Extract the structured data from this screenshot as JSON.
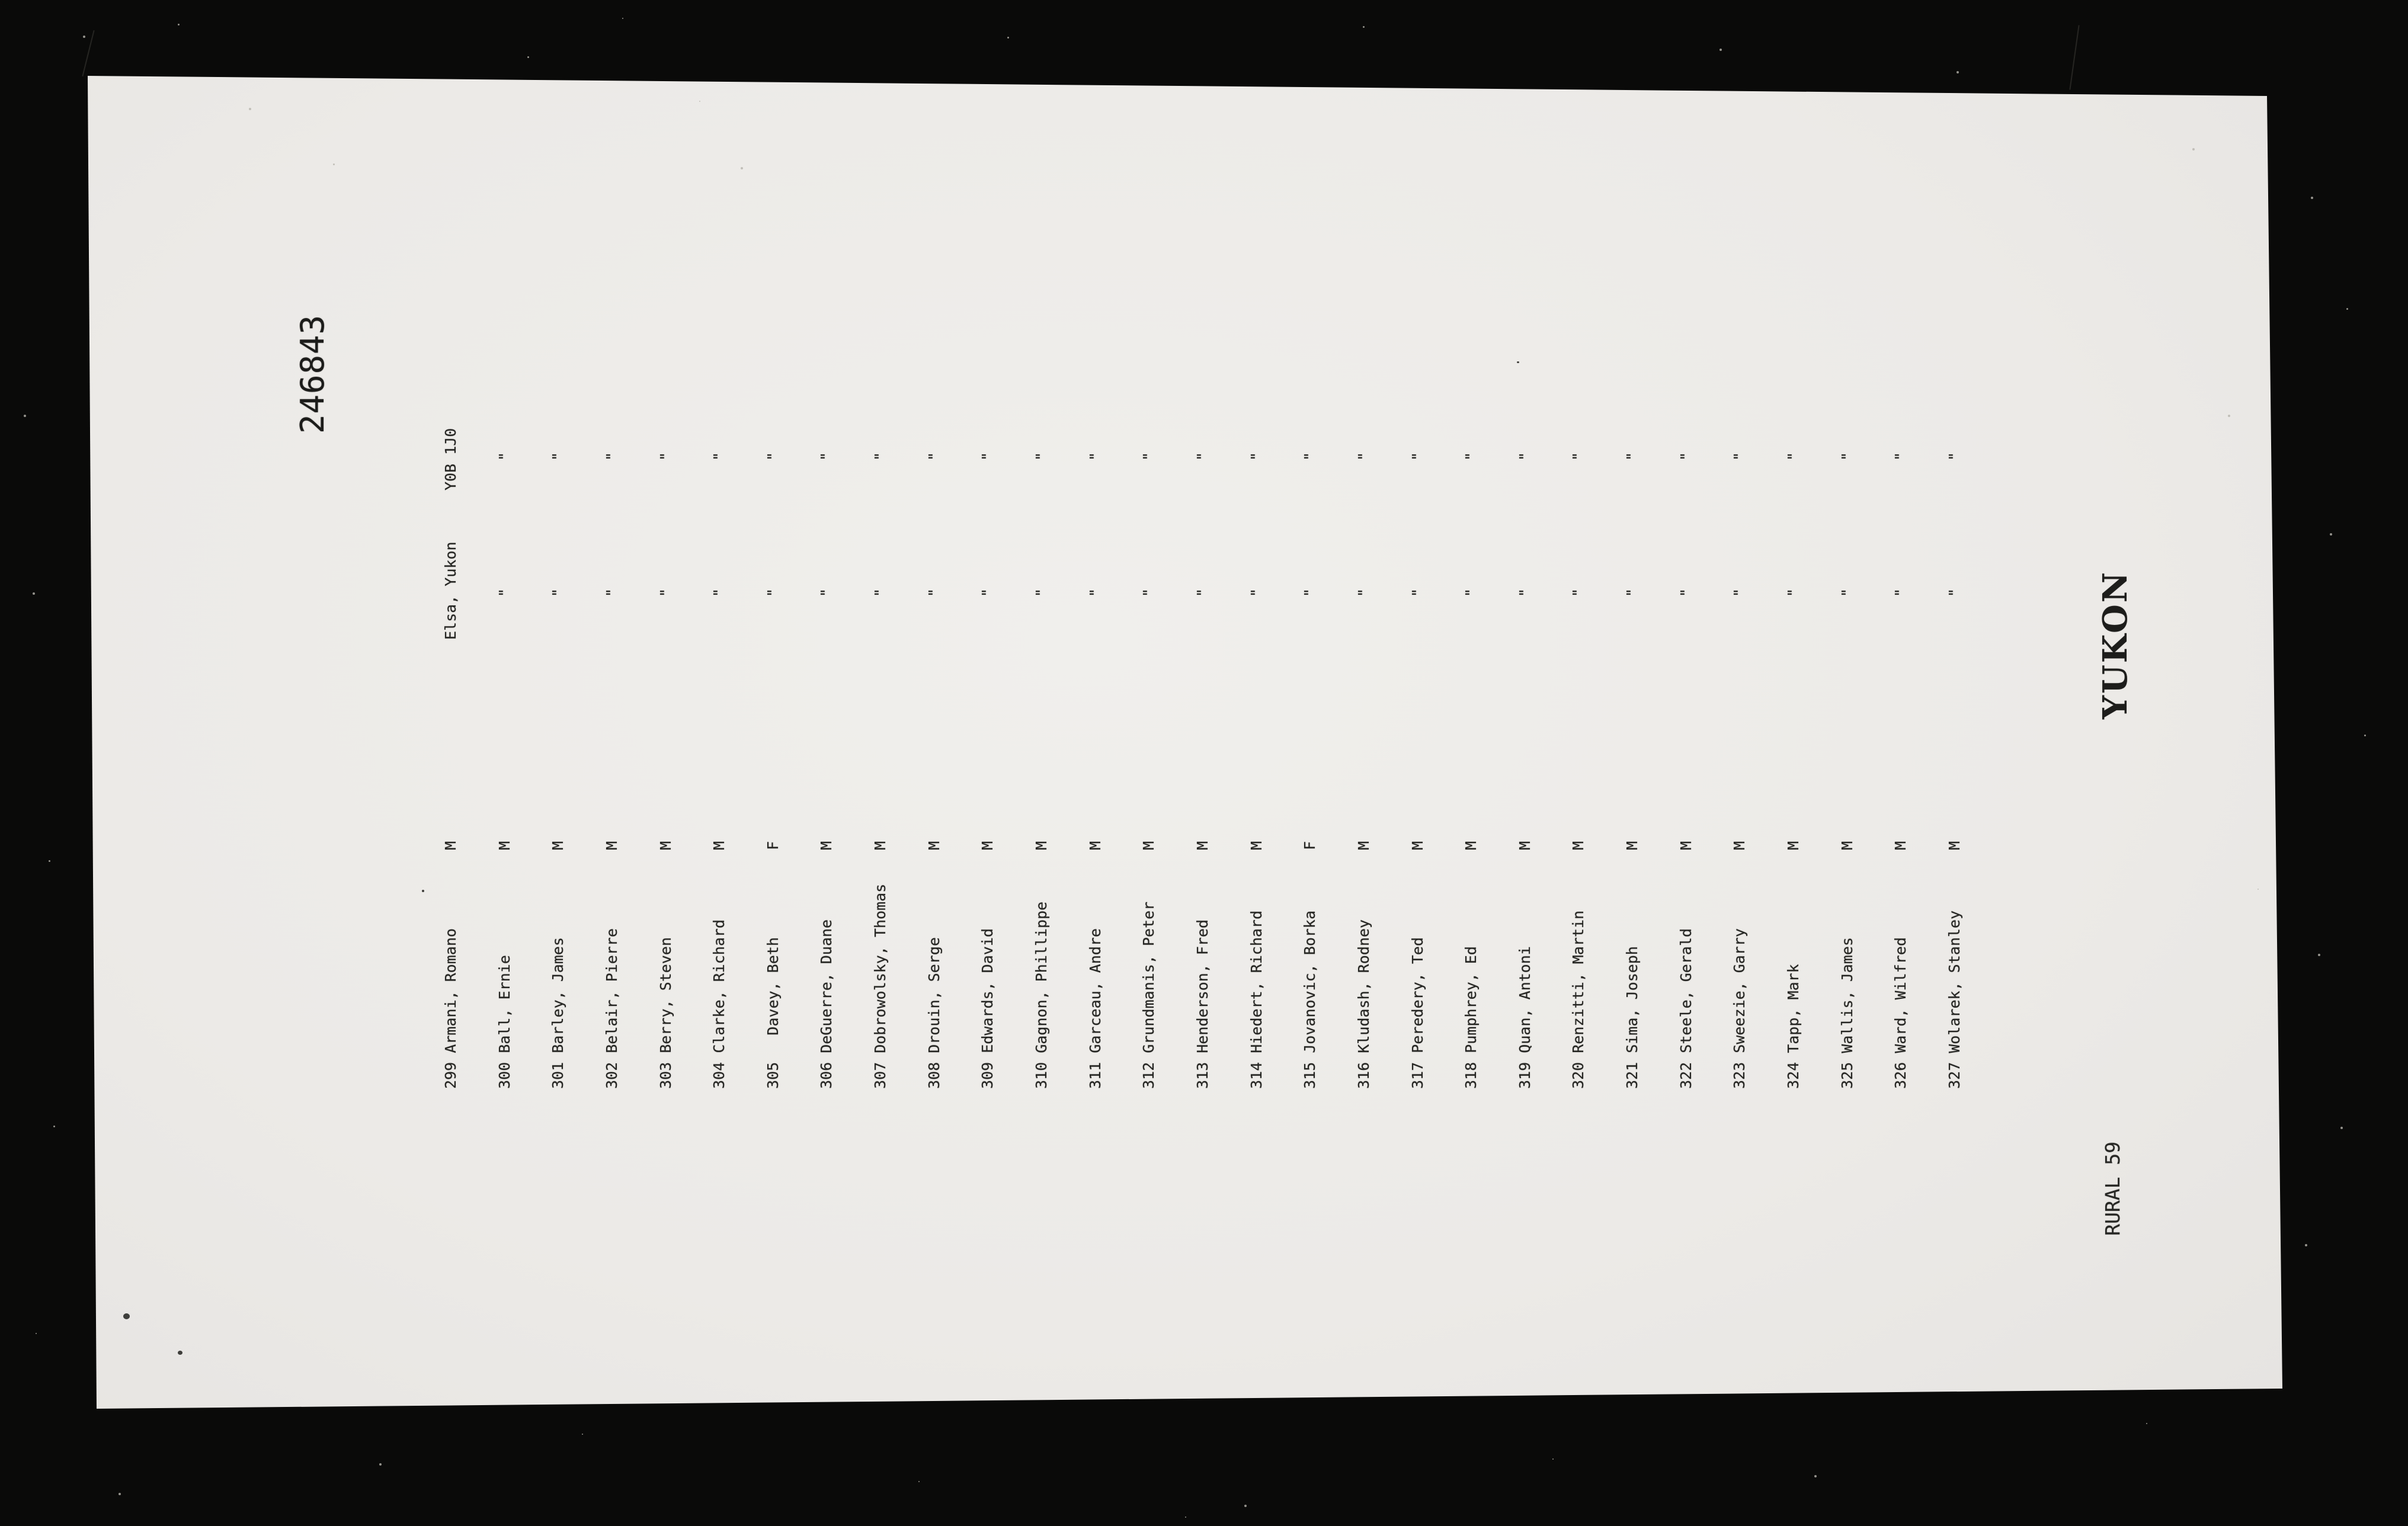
{
  "film": {
    "frame_number": "246843",
    "territory_label": "YUKON",
    "district_label": "RURAL 59",
    "film_black": "#0a0a09",
    "page_color": "#eceae7",
    "ink_color": "#242421"
  },
  "list": {
    "address": {
      "line1": "Elsa, Yukon",
      "postal": "Y0B 1J0"
    },
    "ditto_mark": "\"",
    "rows": [
      {
        "num": "299",
        "name": "Armani, Romano",
        "sex": "M"
      },
      {
        "num": "300",
        "name": "Ball, Ernie",
        "sex": "M"
      },
      {
        "num": "301",
        "name": "Barley, James",
        "sex": "M"
      },
      {
        "num": "302",
        "name": "Belair, Pierre",
        "sex": "M"
      },
      {
        "num": "303",
        "name": "Berry, Steven",
        "sex": "M"
      },
      {
        "num": "304",
        "name": "Clarke, Richard",
        "sex": "M"
      },
      {
        "num": "305",
        "name": "Davey, Beth",
        "sex": "F",
        "indent": 2
      },
      {
        "num": "306",
        "name": "DeGuerre, Duane",
        "sex": "M"
      },
      {
        "num": "307",
        "name": "Dobrowolsky, Thomas",
        "sex": "M"
      },
      {
        "num": "308",
        "name": "Drouin, Serge",
        "sex": "M"
      },
      {
        "num": "309",
        "name": "Edwards, David",
        "sex": "M"
      },
      {
        "num": "310",
        "name": "Gagnon, Phillippe",
        "sex": "M"
      },
      {
        "num": "311",
        "name": "Garceau, Andre",
        "sex": "M"
      },
      {
        "num": "312",
        "name": "Grundmanis, Peter",
        "sex": "M"
      },
      {
        "num": "313",
        "name": "Henderson, Fred",
        "sex": "M"
      },
      {
        "num": "314",
        "name": "Hiedert, Richard",
        "sex": "M"
      },
      {
        "num": "315",
        "name": "Jovanovic, Borka",
        "sex": "F"
      },
      {
        "num": "316",
        "name": "Kludash, Rodney",
        "sex": "M"
      },
      {
        "num": "317",
        "name": "Peredery, Ted",
        "sex": "M"
      },
      {
        "num": "318",
        "name": "Pumphrey, Ed",
        "sex": "M"
      },
      {
        "num": "319",
        "name": "Quan, Antoni",
        "sex": "M"
      },
      {
        "num": "320",
        "name": "Renzitti, Martin",
        "sex": "M"
      },
      {
        "num": "321",
        "name": "Sima, Joseph",
        "sex": "M"
      },
      {
        "num": "322",
        "name": "Steele, Gerald",
        "sex": "M"
      },
      {
        "num": "323",
        "name": "Sweezie, Garry",
        "sex": "M"
      },
      {
        "num": "324",
        "name": "Tapp, Mark",
        "sex": "M"
      },
      {
        "num": "325",
        "name": "Wallis, James",
        "sex": "M"
      },
      {
        "num": "326",
        "name": "Ward, Wilfred",
        "sex": "M"
      },
      {
        "num": "327",
        "name": "Wolarek, Stanley",
        "sex": "M"
      }
    ]
  }
}
